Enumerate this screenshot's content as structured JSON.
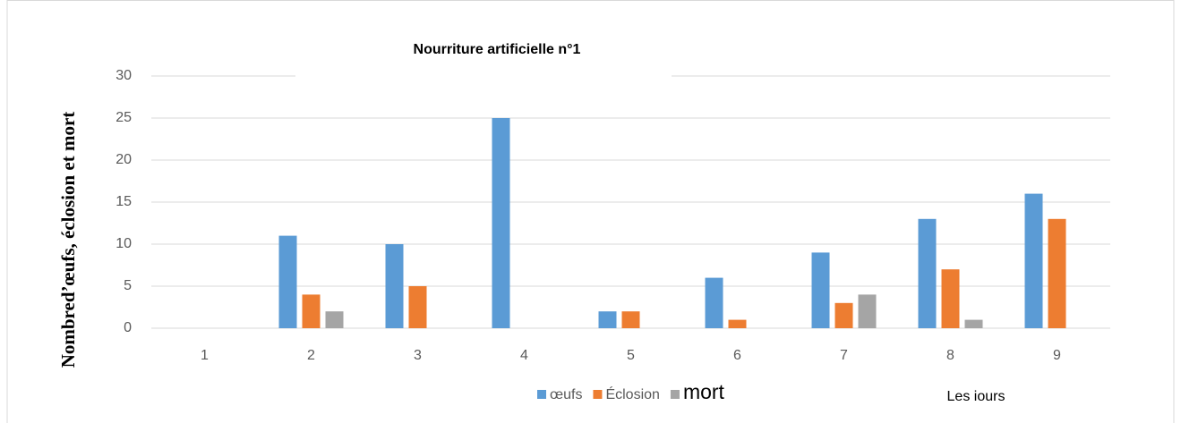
{
  "chart_data": {
    "type": "bar",
    "title": "Nourriture artificielle n°1",
    "ylabel": "Nombred’œufs, éclosion et mort",
    "xlabel": "Les iours",
    "categories": [
      "1",
      "2",
      "3",
      "4",
      "5",
      "6",
      "7",
      "8",
      "9"
    ],
    "series": [
      {
        "name": "œufs",
        "color": "#5b9bd5",
        "values": [
          0,
          11,
          10,
          25,
          2,
          6,
          9,
          13,
          16
        ]
      },
      {
        "name": "Éclosion",
        "color": "#ed7d31",
        "values": [
          0,
          4,
          5,
          0,
          2,
          1,
          3,
          7,
          13
        ]
      },
      {
        "name": "mort",
        "color": "#a5a5a5",
        "values": [
          0,
          2,
          0,
          0,
          0,
          0,
          4,
          1,
          0
        ]
      }
    ],
    "ylim": [
      0,
      30
    ],
    "yticks": [
      0,
      5,
      10,
      15,
      20,
      25,
      30
    ],
    "grid": true,
    "legend": "bottom"
  }
}
